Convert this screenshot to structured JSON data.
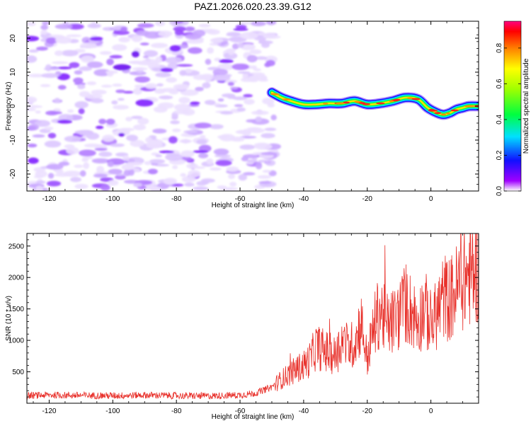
{
  "chart_data": [
    {
      "type": "heatmap",
      "title": "PAZ1.2026.020.23.39.G12",
      "xlabel": "Height of straight line (km)",
      "ylabel": "Frequency (Hz)",
      "xlim": [
        -127,
        15
      ],
      "ylim": [
        -25,
        25
      ],
      "xticks": [
        -120,
        -100,
        -80,
        -60,
        -40,
        -20,
        0
      ],
      "yticks": [
        -20,
        -10,
        0,
        10,
        20
      ],
      "noise_region": {
        "x_range": [
          -126,
          -49
        ],
        "y_range": [
          -25,
          25
        ],
        "description_level": "low"
      },
      "signal_trace": {
        "x": [
          -50,
          -47,
          -44,
          -40,
          -36,
          -32,
          -28,
          -24,
          -20,
          -16,
          -12,
          -8,
          -4,
          -1,
          2,
          4,
          6,
          8,
          10,
          12,
          15
        ],
        "y": [
          4,
          2.5,
          1.5,
          0.5,
          0.5,
          0.8,
          0.8,
          1.5,
          0.5,
          0.8,
          1.5,
          2.5,
          2.0,
          -0.5,
          -2.0,
          -2.5,
          -2.0,
          -1.0,
          -0.5,
          0.0,
          0.0
        ]
      },
      "colorbar": {
        "label": "Normalized spectral amplitude",
        "ticks": [
          0.0,
          0.2,
          0.4,
          0.6,
          0.8
        ],
        "tick_labels": [
          "0.0",
          "0.2",
          "0.4",
          "0.6",
          "0.8"
        ],
        "range": [
          0,
          0.95
        ]
      }
    },
    {
      "type": "line",
      "title": "",
      "xlabel": "Height of straight line (km)",
      "ylabel": "SNR (10 * v/v)",
      "xlim": [
        -127,
        15
      ],
      "ylim": [
        0,
        2700
      ],
      "xticks": [
        -120,
        -100,
        -80,
        -60,
        -40,
        -20,
        0
      ],
      "yticks": [
        500,
        1000,
        1500,
        2000,
        2500
      ],
      "series": [
        {
          "name": "SNR",
          "color": "#e8302a",
          "x": [
            -127,
            -120,
            -110,
            -100,
            -90,
            -80,
            -70,
            -60,
            -55,
            -50,
            -47,
            -44,
            -42,
            -40,
            -38,
            -36,
            -34,
            -32,
            -30,
            -28,
            -26,
            -24,
            -22,
            -20,
            -18,
            -16,
            -14,
            -12,
            -10,
            -8,
            -6,
            -4,
            -2,
            0,
            2,
            4,
            6,
            8,
            10,
            12,
            15
          ],
          "values": [
            120,
            130,
            125,
            120,
            130,
            120,
            115,
            130,
            160,
            260,
            380,
            480,
            550,
            600,
            700,
            900,
            850,
            800,
            750,
            1000,
            900,
            950,
            1300,
            700,
            1200,
            1500,
            1250,
            1300,
            1400,
            1600,
            1450,
            1300,
            1550,
            1200,
            1450,
            1700,
            1650,
            1800,
            1950,
            2050,
            2150
          ]
        }
      ]
    }
  ]
}
